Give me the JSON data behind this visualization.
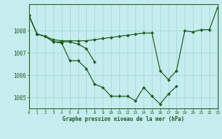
{
  "title": "Graphe pression niveau de la mer (hPa)",
  "bg_color": "#c5ecee",
  "grid_color": "#a8d8da",
  "line_color": "#1e5c1e",
  "xlim": [
    0,
    23
  ],
  "ylim": [
    1004.5,
    1009.2
  ],
  "ytick_vals": [
    1005,
    1006,
    1007,
    1008
  ],
  "xtick_vals": [
    0,
    1,
    2,
    3,
    4,
    5,
    6,
    7,
    8,
    9,
    10,
    11,
    12,
    13,
    14,
    15,
    16,
    17,
    18,
    19,
    20,
    21,
    22,
    23
  ],
  "series": [
    {
      "x": [
        0,
        1,
        2,
        3,
        4,
        5,
        6,
        7,
        8,
        9,
        10,
        11,
        12,
        13,
        14,
        15,
        16,
        17,
        18
      ],
      "y": [
        1008.7,
        1007.85,
        1007.75,
        1007.5,
        1007.45,
        1006.65,
        1006.65,
        1006.3,
        1005.6,
        1005.45,
        1005.05,
        1005.05,
        1005.05,
        1004.85,
        1005.45,
        1005.05,
        1004.7,
        1005.15,
        1005.5
      ]
    },
    {
      "x": [
        0,
        1,
        2,
        3,
        4,
        5,
        6,
        7,
        8
      ],
      "y": [
        1008.7,
        1007.85,
        1007.75,
        1007.5,
        1007.5,
        1007.5,
        1007.4,
        1007.2,
        1006.6
      ]
    },
    {
      "x": [
        0,
        1,
        2,
        3,
        4,
        5,
        6,
        7,
        8,
        9,
        10,
        11,
        12,
        13,
        14,
        15,
        16,
        17,
        18,
        19,
        20,
        21,
        22,
        23
      ],
      "y": [
        1008.7,
        1007.85,
        1007.75,
        1007.6,
        1007.55,
        1007.55,
        1007.55,
        1007.55,
        1007.6,
        1007.65,
        1007.7,
        1007.75,
        1007.8,
        1007.85,
        1007.9,
        1007.9,
        1006.2,
        1005.8,
        1006.2,
        1008.0,
        1007.95,
        1008.05,
        1008.05,
        1009.05
      ]
    }
  ]
}
